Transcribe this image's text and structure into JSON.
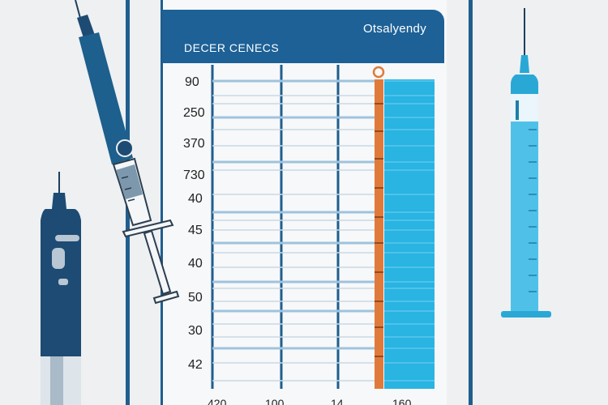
{
  "header": {
    "title": "Otsalyendy",
    "subtitle": "DECER CENECS"
  },
  "y_labels": [
    "90",
    "250",
    "370",
    "730",
    "40",
    "45",
    "40",
    "50",
    "30",
    "42"
  ],
  "x_labels": [
    "420",
    "100",
    "14",
    "160"
  ],
  "colors": {
    "frame": "#1f5e8e",
    "header": "#1d6197",
    "accent_orange": "#e07a3b",
    "bar_cyan": "#29b4e2",
    "grid_blue": "#9fc3de"
  }
}
